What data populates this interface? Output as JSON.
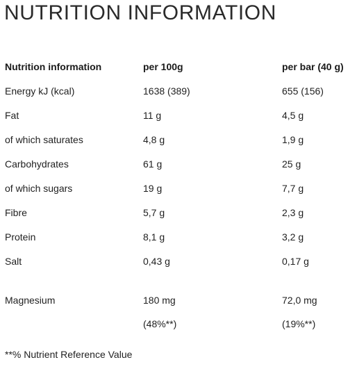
{
  "title": "NUTRITION INFORMATION",
  "table": {
    "headers": [
      "Nutrition information",
      "per 100g",
      "per bar (40 g)"
    ],
    "rows": [
      [
        "Energy kJ (kcal)",
        "1638 (389)",
        "655 (156)"
      ],
      [
        "Fat",
        "11 g",
        "4,5 g"
      ],
      [
        "of which saturates",
        "4,8 g",
        "1,9 g"
      ],
      [
        "Carbohydrates",
        "61 g",
        "25 g"
      ],
      [
        "of which sugars",
        "19 g",
        "7,7 g"
      ],
      [
        "Fibre",
        "5,7 g",
        "2,3 g"
      ],
      [
        "Protein",
        "8,1 g",
        "3,2 g"
      ],
      [
        "Salt",
        "0,43 g",
        "0,17 g"
      ],
      [
        "Magnesium",
        "180 mg",
        "72,0 mg"
      ],
      [
        "",
        "(48%**)",
        "(19%**)"
      ]
    ]
  },
  "footnote": "**% Nutrient Reference Value"
}
